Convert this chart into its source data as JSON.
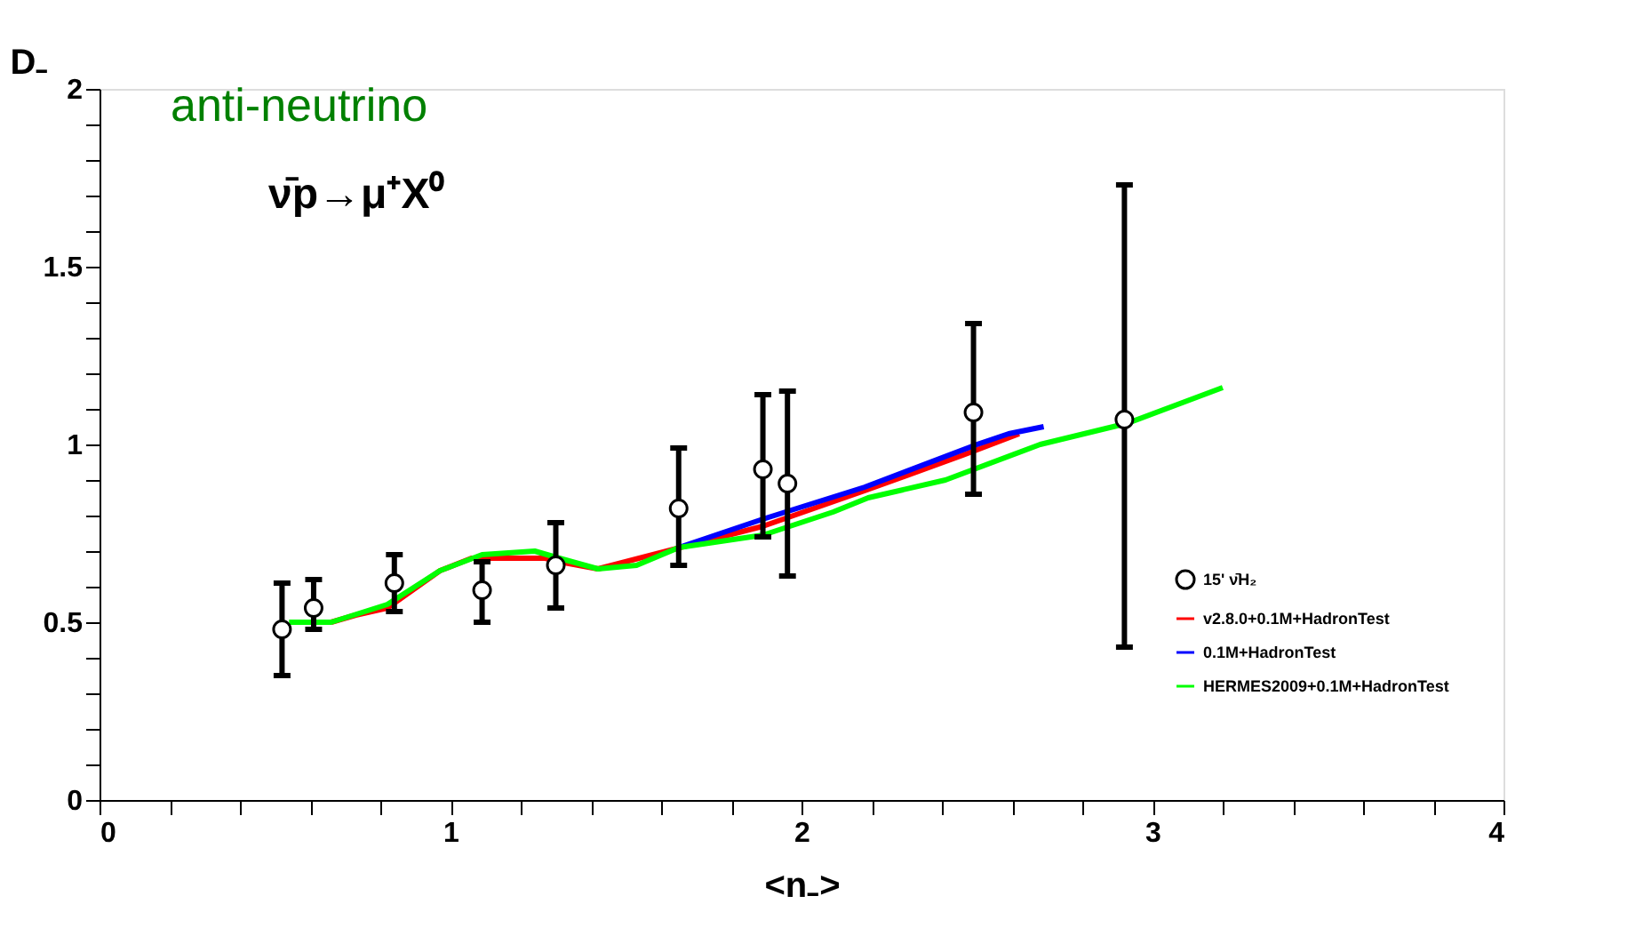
{
  "chart_data": {
    "type": "scatter",
    "ylabel": "D₋",
    "xlabel": "<n₋>",
    "annotations": [
      "anti-neutrino",
      "ν̄p→μ⁺X⁰"
    ],
    "xlim": [
      0,
      4
    ],
    "ylim": [
      0,
      2
    ],
    "xticks": [
      0,
      {
        "value": 0.2,
        "label": null
      },
      {
        "value": 0.4,
        "label": null
      },
      {
        "value": 0.6,
        "label": null
      },
      {
        "value": 0.8,
        "label": null
      },
      1,
      {
        "value": 1.2,
        "label": null
      },
      {
        "value": 1.4,
        "label": null
      },
      {
        "value": 1.6,
        "label": null
      },
      {
        "value": 1.8,
        "label": null
      },
      2,
      {
        "value": 2.2,
        "label": null
      },
      {
        "value": 2.4,
        "label": null
      },
      {
        "value": 2.6,
        "label": null
      },
      {
        "value": 2.8,
        "label": null
      },
      3,
      {
        "value": 3.2,
        "label": null
      },
      {
        "value": 3.4,
        "label": null
      },
      {
        "value": 3.6,
        "label": null
      },
      {
        "value": 3.8,
        "label": null
      },
      4
    ],
    "yticks": [
      0,
      {
        "value": 0.1,
        "label": null
      },
      {
        "value": 0.2,
        "label": null
      },
      {
        "value": 0.3,
        "label": null
      },
      {
        "value": 0.4,
        "label": null
      },
      0.5,
      {
        "value": 0.6,
        "label": null
      },
      {
        "value": 0.7,
        "label": null
      },
      {
        "value": 0.8,
        "label": null
      },
      {
        "value": 0.9,
        "label": null
      },
      1,
      {
        "value": 1.1,
        "label": null
      },
      {
        "value": 1.2,
        "label": null
      },
      {
        "value": 1.3,
        "label": null
      },
      {
        "value": 1.4,
        "label": null
      },
      1.5,
      {
        "value": 1.6,
        "label": null
      },
      {
        "value": 1.7,
        "label": null
      },
      {
        "value": 1.8,
        "label": null
      },
      {
        "value": 1.9,
        "label": null
      },
      2
    ],
    "grid": false,
    "legend": "bottom right",
    "series": [
      {
        "name": "15' ν̄H₂",
        "marker": "circle",
        "color": "#000000",
        "x": [
          0.52,
          0.61,
          0.84,
          1.09,
          1.3,
          1.65,
          1.89,
          1.96,
          2.49,
          2.92
        ],
        "values": [
          0.48,
          0.54,
          0.61,
          0.59,
          0.66,
          0.82,
          0.93,
          0.89,
          1.09,
          1.07
        ],
        "errors": [
          [
            0.35,
            0.61
          ],
          [
            0.48,
            0.62
          ],
          [
            0.53,
            0.69
          ],
          [
            0.5,
            0.67
          ],
          [
            0.54,
            0.78
          ],
          [
            0.66,
            0.99
          ],
          [
            0.74,
            1.14
          ],
          [
            0.63,
            1.15
          ],
          [
            0.86,
            1.34
          ],
          [
            0.43,
            1.73
          ]
        ]
      },
      {
        "name": "v2.8.0+0.1M+HadronTest",
        "type": "line",
        "color": "#ff0000",
        "x": [
          0.66,
          0.73,
          0.82,
          0.97,
          1.06,
          1.27,
          1.31,
          1.42,
          1.89,
          2.18,
          2.46,
          2.62
        ],
        "values": [
          0.5,
          0.52,
          0.54,
          0.645,
          0.68,
          0.68,
          0.67,
          0.65,
          0.77,
          0.87,
          0.97,
          1.03
        ]
      },
      {
        "name": "0.1M+HadronTest",
        "type": "line",
        "color": "#0000ff",
        "x": [
          1.65,
          1.89,
          2.18,
          2.5,
          2.59,
          2.69
        ],
        "values": [
          0.71,
          0.79,
          0.88,
          1.0,
          1.03,
          1.05
        ]
      },
      {
        "name": "HERMES2009+0.1M+HadronTest",
        "type": "line",
        "color": "#00ff00",
        "x": [
          0.54,
          0.66,
          0.82,
          0.97,
          1.09,
          1.24,
          1.31,
          1.42,
          1.53,
          1.65,
          1.89,
          2.09,
          2.19,
          2.41,
          2.68,
          2.93,
          3.2
        ],
        "values": [
          0.5,
          0.5,
          0.55,
          0.645,
          0.69,
          0.7,
          0.68,
          0.65,
          0.66,
          0.71,
          0.745,
          0.81,
          0.85,
          0.9,
          1.0,
          1.06,
          1.16
        ]
      }
    ]
  }
}
